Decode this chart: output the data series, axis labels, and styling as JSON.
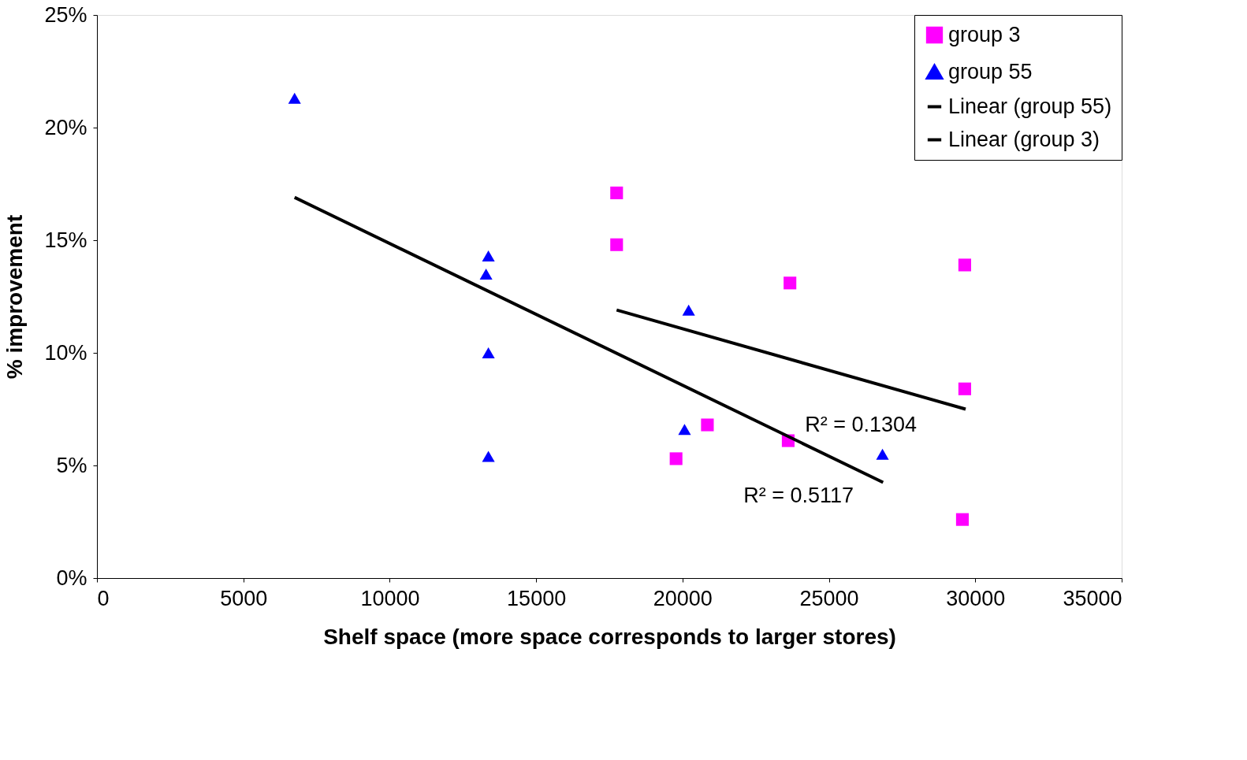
{
  "chart_data": {
    "type": "scatter",
    "xlabel": "Shelf space (more space corresponds to larger stores)",
    "ylabel": "% improvement",
    "xlim": [
      0,
      35000
    ],
    "xticks": [
      0,
      5000,
      10000,
      15000,
      20000,
      25000,
      30000,
      35000
    ],
    "ylim": [
      0,
      25
    ],
    "yticks": [
      {
        "value": 0,
        "label": "0%"
      },
      {
        "value": 5,
        "label": "5%"
      },
      {
        "value": 10,
        "label": "10%"
      },
      {
        "value": 15,
        "label": "15%"
      },
      {
        "value": 20,
        "label": "20%"
      },
      {
        "value": 25,
        "label": "25%"
      }
    ],
    "grid": false,
    "legend": "top right",
    "series": [
      {
        "name": "group 3",
        "marker": "square",
        "color": "#ff00ff",
        "x": [
          17750,
          17750,
          19780,
          20850,
          23670,
          23610,
          29640,
          29640,
          29560
        ],
        "values": [
          17.1,
          14.8,
          5.3,
          6.8,
          13.1,
          6.1,
          13.9,
          8.4,
          2.6
        ]
      },
      {
        "name": "group 55",
        "marker": "triangle",
        "color": "#0000ff",
        "x": [
          6750,
          13370,
          13290,
          13370,
          13370,
          20210,
          20070,
          26830
        ],
        "values": [
          21.3,
          14.3,
          13.5,
          10.0,
          5.4,
          11.9,
          6.6,
          5.5
        ]
      },
      {
        "name": "Linear (group 55)",
        "type": "line",
        "marker": "none",
        "color": "#000000",
        "x": [
          6750,
          26850
        ],
        "values": [
          16.9,
          4.25
        ]
      },
      {
        "name": "Linear (group 3)",
        "type": "line",
        "marker": "none",
        "color": "#000000",
        "x": [
          17750,
          29670
        ],
        "values": [
          11.9,
          7.5
        ]
      }
    ],
    "annotations": [
      "R² = 0.1304",
      "R² = 0.5117"
    ]
  }
}
